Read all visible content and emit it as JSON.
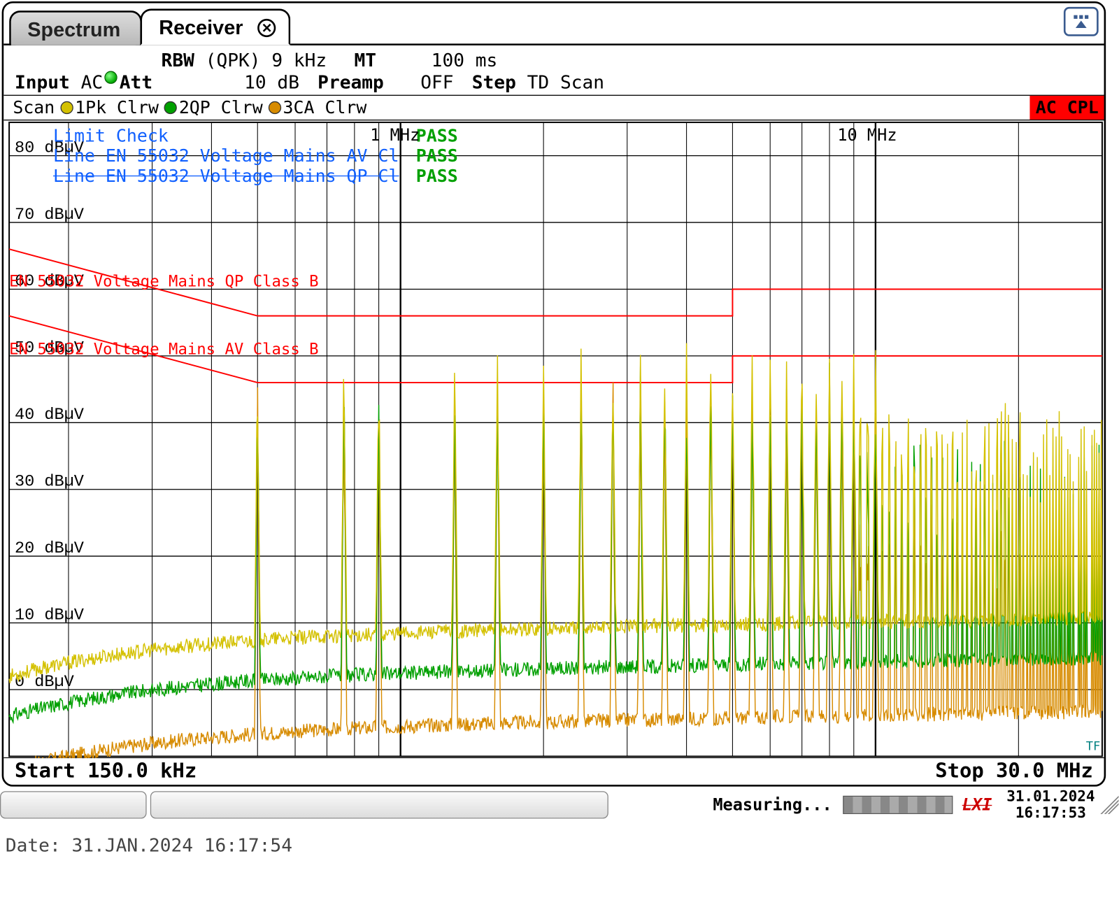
{
  "tabs": {
    "inactive_label": "Spectrum",
    "active_label": "Receiver"
  },
  "params": {
    "rbw_label": "RBW",
    "rbw_mode": "(QPK)",
    "rbw_value": "9 kHz",
    "mt_label": "MT",
    "mt_value": "100 ms",
    "input_label": "Input",
    "input_mode": "AC",
    "att_label": "Att",
    "att_value": "10 dB",
    "preamp_label": "Preamp",
    "preamp_value": "OFF",
    "step_label": "Step",
    "step_value": "TD Scan"
  },
  "legend": {
    "scan": "Scan",
    "t1": "1Pk Clrw",
    "t2": "2QP Clrw",
    "t3": "3CA Clrw",
    "ac_cpl": "AC CPL"
  },
  "colors": {
    "trace1": "#d4c100",
    "trace2": "#00a000",
    "trace3": "#d78b00",
    "limit": "#ff0000",
    "grid": "#000000",
    "bg": "#ffffff"
  },
  "chart": {
    "xmin_hz": 150000,
    "xmax_hz": 30000000,
    "ymin": -10,
    "ymax": 85,
    "yticks": [
      0,
      10,
      20,
      30,
      40,
      50,
      60,
      70,
      80
    ],
    "ylabel_suffix": " dBµV",
    "marker_1mhz": "1 MHz",
    "marker_10mhz": "10 MHz"
  },
  "overlays": {
    "limit_check": "Limit Check",
    "line_av": "Line EN 55032 Voltage Mains AV Cl",
    "line_qp": "Line EN 55032 Voltage Mains QP Cl",
    "pass": "PASS",
    "lim_qp_label": "EN 55032 Voltage Mains QP Class B",
    "lim_av_label": "EN 55032 Voltage Mains AV Class B",
    "tf": "TF"
  },
  "limit_lines": {
    "qp": [
      [
        150000,
        66
      ],
      [
        500000,
        56
      ],
      [
        5000000,
        56
      ],
      [
        5000000,
        60
      ],
      [
        30000000,
        60
      ]
    ],
    "av": [
      [
        150000,
        56
      ],
      [
        500000,
        46
      ],
      [
        5000000,
        46
      ],
      [
        5000000,
        50
      ],
      [
        30000000,
        50
      ]
    ]
  },
  "spikes_khz": [
    500,
    760,
    900,
    1300,
    1600,
    2000,
    2400,
    2800,
    3200,
    3600,
    4000,
    4500,
    5000,
    5500,
    6000,
    6500,
    7000,
    7500,
    8000,
    8500,
    9000,
    10000
  ],
  "startstop": {
    "start": "Start 150.0 kHz",
    "stop": "Stop 30.0 MHz"
  },
  "status": {
    "measuring": "Measuring...",
    "lxi": "LXI",
    "date": "31.01.2024",
    "time": "16:17:53"
  },
  "footer": "Date: 31.JAN.2024  16:17:54"
}
